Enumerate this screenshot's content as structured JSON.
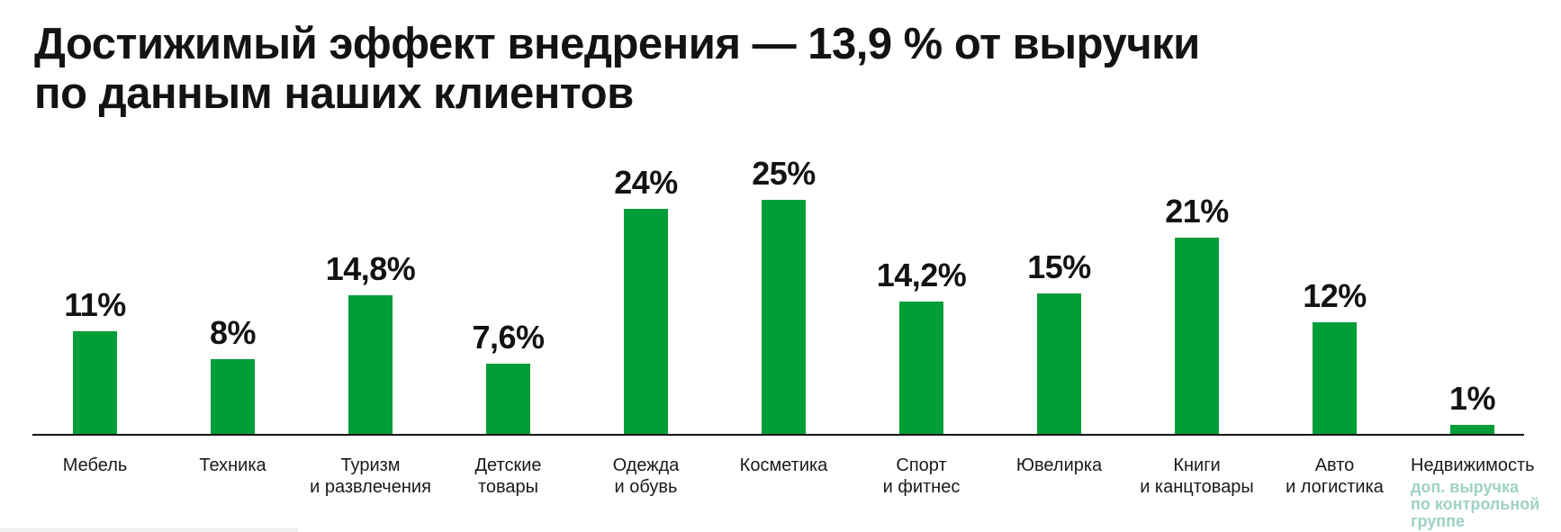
{
  "title": {
    "line1": "Достижимый эффект внедрения — 13,9 % от выручки",
    "line2": "по данным наших клиентов"
  },
  "colors": {
    "bar": "#009E38",
    "axis": "#161616",
    "text": "#131313",
    "annotation": "#9ED1C6"
  },
  "chart_data": {
    "type": "bar",
    "title": "Достижимый эффект внедрения — 13,9 % от выручки по данным наших клиентов",
    "xlabel": "",
    "ylabel": "",
    "ylim": [
      0,
      25
    ],
    "grid": false,
    "legend": false,
    "bar_color": "#009E38",
    "categories": [
      "Мебель",
      "Техника",
      "Туризм и развлечения",
      "Детские товары",
      "Одежда и обувь",
      "Косметика",
      "Спорт и фитнес",
      "Ювелирка",
      "Книги и канцтовары",
      "Авто и логистика",
      "Недвижимость"
    ],
    "values": [
      11,
      8,
      14.8,
      7.6,
      24,
      25,
      14.2,
      15,
      21,
      12,
      1
    ],
    "value_labels": [
      "11%",
      "8%",
      "14,8%",
      "7,6%",
      "24%",
      "25%",
      "14,2%",
      "15%",
      "21%",
      "12%",
      "1%"
    ],
    "category_label_lines": [
      [
        "Мебель"
      ],
      [
        "Техника"
      ],
      [
        "Туризм",
        "и развлечения"
      ],
      [
        "Детские",
        "товары"
      ],
      [
        "Одежда",
        "и обувь"
      ],
      [
        "Косметика"
      ],
      [
        "Спорт",
        "и фитнес"
      ],
      [
        "Ювелирка"
      ],
      [
        "Книги",
        "и канцтовары"
      ],
      [
        "Авто",
        "и логистика"
      ],
      [
        "Недвижимость"
      ]
    ],
    "annotation": {
      "applies_to": "Недвижимость",
      "lines": [
        "доп. выручка",
        "по контрольной",
        "группе"
      ],
      "color": "#9ED1C6"
    }
  }
}
